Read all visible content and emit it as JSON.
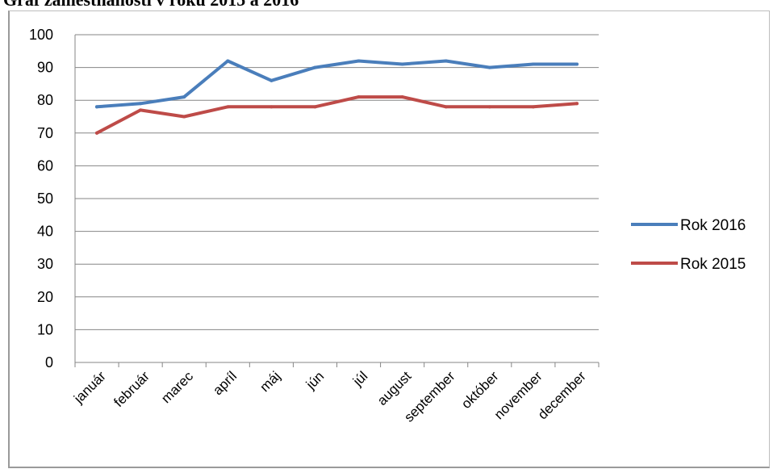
{
  "document": {
    "title": "Graf zamestnanosti v roku 2015 a 2016"
  },
  "chart_data": {
    "type": "line",
    "title": "",
    "xlabel": "",
    "ylabel": "",
    "categories": [
      "január",
      "február",
      "marec",
      "apríl",
      "máj",
      "jún",
      "júl",
      "august",
      "september",
      "október",
      "november",
      "december"
    ],
    "series": [
      {
        "name": "Rok 2016",
        "color": "#4a7ebb",
        "values": [
          78,
          79,
          81,
          92,
          86,
          90,
          92,
          91,
          92,
          90,
          91,
          91
        ]
      },
      {
        "name": "Rok 2015",
        "color": "#be4b48",
        "values": [
          70,
          77,
          75,
          78,
          78,
          78,
          81,
          81,
          78,
          78,
          78,
          79
        ]
      }
    ],
    "ylim": [
      0,
      100
    ],
    "yticks": [
      "0",
      "10",
      "20",
      "30",
      "40",
      "50",
      "60",
      "70",
      "80",
      "90",
      "100"
    ],
    "grid": true,
    "legend_position": "right"
  }
}
